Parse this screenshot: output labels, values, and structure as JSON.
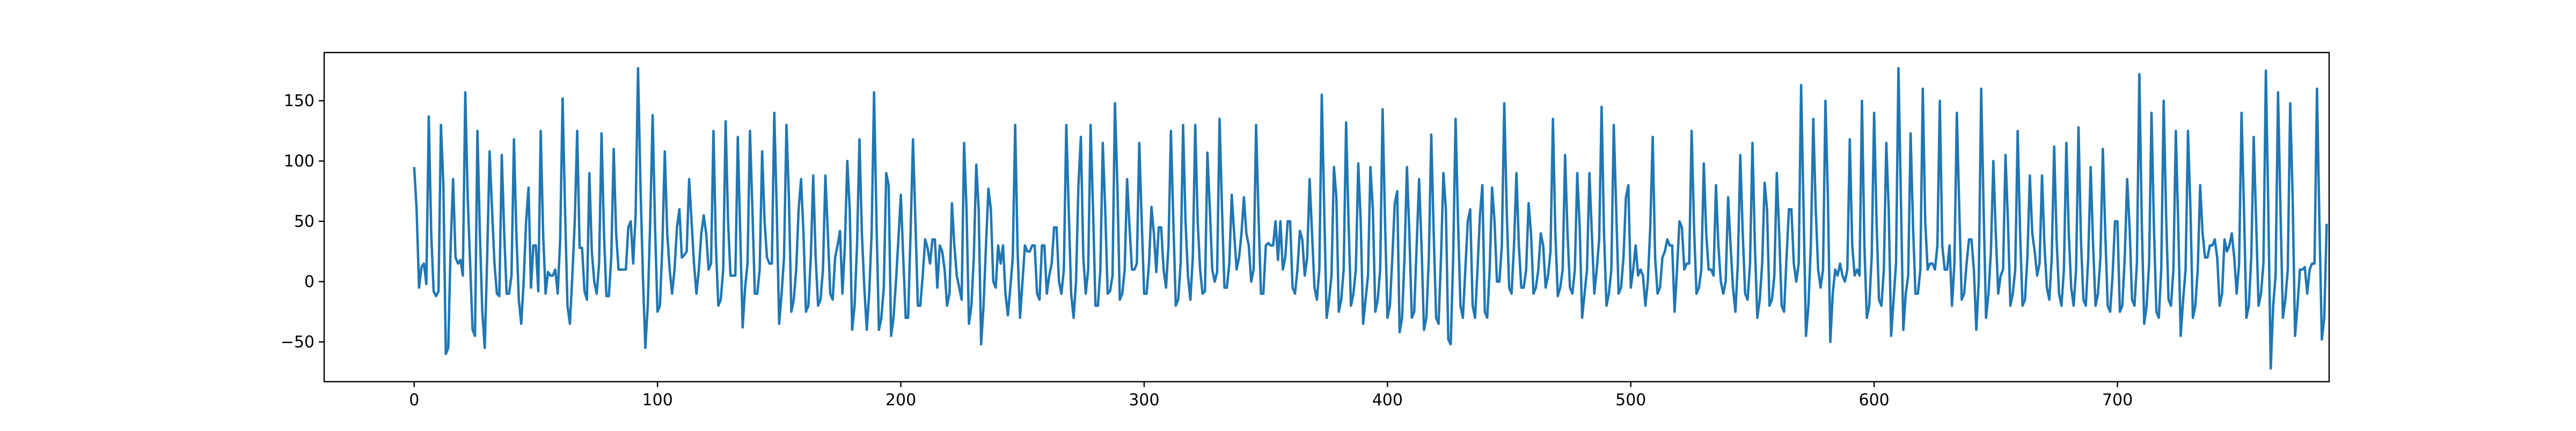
{
  "chart_data": {
    "type": "line",
    "title": "",
    "xlabel": "",
    "ylabel": "",
    "xlim": [
      -37,
      787
    ],
    "ylim": [
      -83,
      190
    ],
    "xticks": [
      0,
      100,
      200,
      300,
      400,
      500,
      600,
      700
    ],
    "xtick_labels": [
      "0",
      "100",
      "200",
      "300",
      "400",
      "500",
      "600",
      "700"
    ],
    "yticks": [
      -50,
      0,
      50,
      100,
      150
    ],
    "ytick_labels": [
      "−50",
      "0",
      "50",
      "100",
      "150"
    ],
    "grid": false,
    "line_color": "#1f77b4",
    "series": [
      {
        "name": "",
        "x_start": 0,
        "x_step": 1,
        "values": [
          95,
          60,
          -5,
          12,
          15,
          -2,
          137,
          40,
          -8,
          -12,
          -8,
          130,
          80,
          -60,
          -55,
          30,
          85,
          20,
          15,
          18,
          5,
          157,
          70,
          15,
          -40,
          -45,
          125,
          40,
          -25,
          -55,
          20,
          108,
          60,
          15,
          -10,
          -12,
          105,
          40,
          -10,
          -10,
          5,
          118,
          40,
          -15,
          -35,
          0,
          50,
          78,
          -5,
          30,
          30,
          -8,
          125,
          40,
          -10,
          8,
          5,
          5,
          10,
          -10,
          35,
          152,
          60,
          -20,
          -35,
          5,
          50,
          125,
          28,
          28,
          -8,
          -15,
          90,
          25,
          0,
          -10,
          15,
          123,
          40,
          -12,
          -12,
          20,
          110,
          40,
          10,
          10,
          10,
          10,
          45,
          50,
          15,
          55,
          177,
          80,
          5,
          -55,
          -20,
          50,
          138,
          45,
          -25,
          -20,
          30,
          108,
          40,
          10,
          -10,
          10,
          45,
          60,
          20,
          22,
          25,
          85,
          50,
          15,
          -10,
          10,
          40,
          55,
          40,
          10,
          15,
          125,
          30,
          -20,
          -15,
          10,
          133,
          50,
          5,
          5,
          5,
          120,
          40,
          -38,
          -5,
          15,
          125,
          60,
          -10,
          -10,
          10,
          108,
          50,
          20,
          15,
          15,
          140,
          60,
          -35,
          -10,
          20,
          130,
          70,
          -25,
          -15,
          10,
          60,
          85,
          40,
          -25,
          -20,
          20,
          88,
          20,
          -20,
          -15,
          10,
          88,
          40,
          -10,
          -15,
          20,
          30,
          42,
          -10,
          30,
          100,
          60,
          -40,
          -20,
          30,
          118,
          40,
          -5,
          -40,
          -10,
          40,
          157,
          50,
          -40,
          -30,
          -5,
          90,
          80,
          -45,
          -30,
          0,
          35,
          72,
          20,
          -30,
          -30,
          40,
          118,
          50,
          -20,
          -20,
          5,
          35,
          28,
          15,
          35,
          35,
          -5,
          30,
          25,
          10,
          -20,
          -10,
          65,
          30,
          5,
          -5,
          -15,
          115,
          60,
          -35,
          -20,
          20,
          97,
          60,
          -52,
          -20,
          30,
          77,
          60,
          0,
          -5,
          30,
          15,
          30,
          -10,
          -28,
          -5,
          20,
          130,
          25,
          -30,
          0,
          30,
          25,
          25,
          30,
          30,
          -10,
          -15,
          30,
          30,
          -10,
          5,
          15,
          45,
          45,
          0,
          -10,
          10,
          130,
          60,
          -10,
          -30,
          0,
          80,
          120,
          20,
          -10,
          10,
          130,
          60,
          -20,
          -20,
          10,
          115,
          60,
          -10,
          -8,
          5,
          148,
          80,
          -15,
          -10,
          10,
          85,
          45,
          10,
          10,
          15,
          115,
          50,
          -10,
          -10,
          15,
          62,
          40,
          8,
          45,
          45,
          10,
          -5,
          30,
          125,
          50,
          -20,
          -15,
          15,
          130,
          50,
          5,
          -15,
          20,
          130,
          50,
          10,
          -10,
          -8,
          107,
          60,
          10,
          0,
          8,
          135,
          60,
          -5,
          -5,
          15,
          72,
          40,
          10,
          20,
          40,
          70,
          40,
          30,
          0,
          10,
          130,
          55,
          -10,
          -10,
          30,
          32,
          30,
          30,
          50,
          18,
          50,
          10,
          20,
          50,
          50,
          -5,
          -10,
          10,
          42,
          35,
          5,
          20,
          85,
          40,
          -5,
          -15,
          10,
          155,
          60,
          -30,
          -15,
          5,
          95,
          70,
          -25,
          -15,
          10,
          132,
          50,
          -20,
          -10,
          10,
          98,
          50,
          -35,
          -15,
          5,
          95,
          60,
          -25,
          -15,
          10,
          143,
          50,
          -30,
          -20,
          20,
          65,
          75,
          -42,
          -30,
          20,
          95,
          40,
          -30,
          -25,
          30,
          85,
          30,
          -40,
          -30,
          20,
          122,
          40,
          -30,
          -35,
          20,
          90,
          60,
          -48,
          -52,
          20,
          135,
          50,
          -20,
          -30,
          10,
          50,
          60,
          -20,
          -30,
          10,
          55,
          80,
          -25,
          -30,
          10,
          78,
          50,
          0,
          0,
          30,
          148,
          60,
          -5,
          -10,
          30,
          90,
          30,
          -5,
          -5,
          10,
          65,
          40,
          -10,
          -5,
          10,
          40,
          30,
          -5,
          5,
          25,
          135,
          40,
          -12,
          -5,
          10,
          105,
          40,
          -5,
          -10,
          10,
          90,
          45,
          -30,
          -10,
          10,
          90,
          40,
          -10,
          10,
          35,
          145,
          40,
          -20,
          -10,
          10,
          130,
          60,
          -10,
          -5,
          20,
          70,
          80,
          -5,
          10,
          30,
          5,
          10,
          5,
          -20,
          0,
          45,
          120,
          20,
          -10,
          -5,
          20,
          25,
          35,
          30,
          30,
          -25,
          10,
          50,
          45,
          10,
          15,
          15,
          125,
          45,
          -10,
          -5,
          10,
          98,
          40,
          10,
          10,
          5,
          80,
          30,
          0,
          -10,
          0,
          70,
          30,
          -5,
          -25,
          15,
          105,
          40,
          -10,
          -15,
          15,
          115,
          30,
          -30,
          -15,
          15,
          82,
          60,
          -20,
          -15,
          5,
          90,
          40,
          -20,
          -25,
          20,
          60,
          60,
          15,
          0,
          15,
          163,
          60,
          -45,
          -20,
          30,
          135,
          60,
          10,
          -5,
          10,
          150,
          70,
          -50,
          -10,
          10,
          5,
          15,
          5,
          0,
          10,
          118,
          30,
          5,
          10,
          5,
          150,
          30,
          -30,
          -20,
          20,
          140,
          50,
          -15,
          -20,
          10,
          115,
          60,
          -45,
          -15,
          15,
          177,
          70,
          -40,
          -10,
          5,
          123,
          45,
          -10,
          -10,
          10,
          160,
          50,
          10,
          15,
          15,
          10,
          30,
          150,
          30,
          10,
          10,
          30,
          -20,
          15,
          140,
          60,
          -15,
          -10,
          15,
          35,
          35,
          10,
          -40,
          0,
          160,
          60,
          -30,
          -10,
          25,
          100,
          40,
          -10,
          5,
          10,
          105,
          50,
          -20,
          -10,
          10,
          125,
          40,
          -20,
          -15,
          20,
          88,
          40,
          25,
          5,
          15,
          88,
          30,
          -5,
          -15,
          20,
          112,
          35,
          -10,
          -20,
          10,
          115,
          40,
          -5,
          -20,
          10,
          128,
          35,
          -15,
          -20,
          20,
          95,
          30,
          -20,
          -10,
          20,
          110,
          40,
          -20,
          -25,
          5,
          50,
          50,
          -25,
          -20,
          20,
          85,
          45,
          -15,
          -20,
          15,
          172,
          50,
          -35,
          -20,
          15,
          140,
          45,
          -25,
          -30,
          10,
          150,
          55,
          -15,
          -20,
          10,
          125,
          45,
          -45,
          -15,
          10,
          125,
          60,
          -30,
          -20,
          10,
          80,
          40,
          20,
          20,
          30,
          30,
          35,
          20,
          -20,
          -10,
          35,
          25,
          30,
          40,
          20,
          -10,
          15,
          140,
          60,
          -30,
          -20,
          20,
          120,
          50,
          -20,
          -10,
          15,
          175,
          60,
          -72,
          -20,
          5,
          157,
          60,
          -30,
          -15,
          10,
          148,
          70,
          -45,
          -20,
          10,
          10,
          12,
          -10,
          10,
          15,
          15,
          160,
          50,
          -48,
          -30,
          48
        ]
      }
    ]
  }
}
